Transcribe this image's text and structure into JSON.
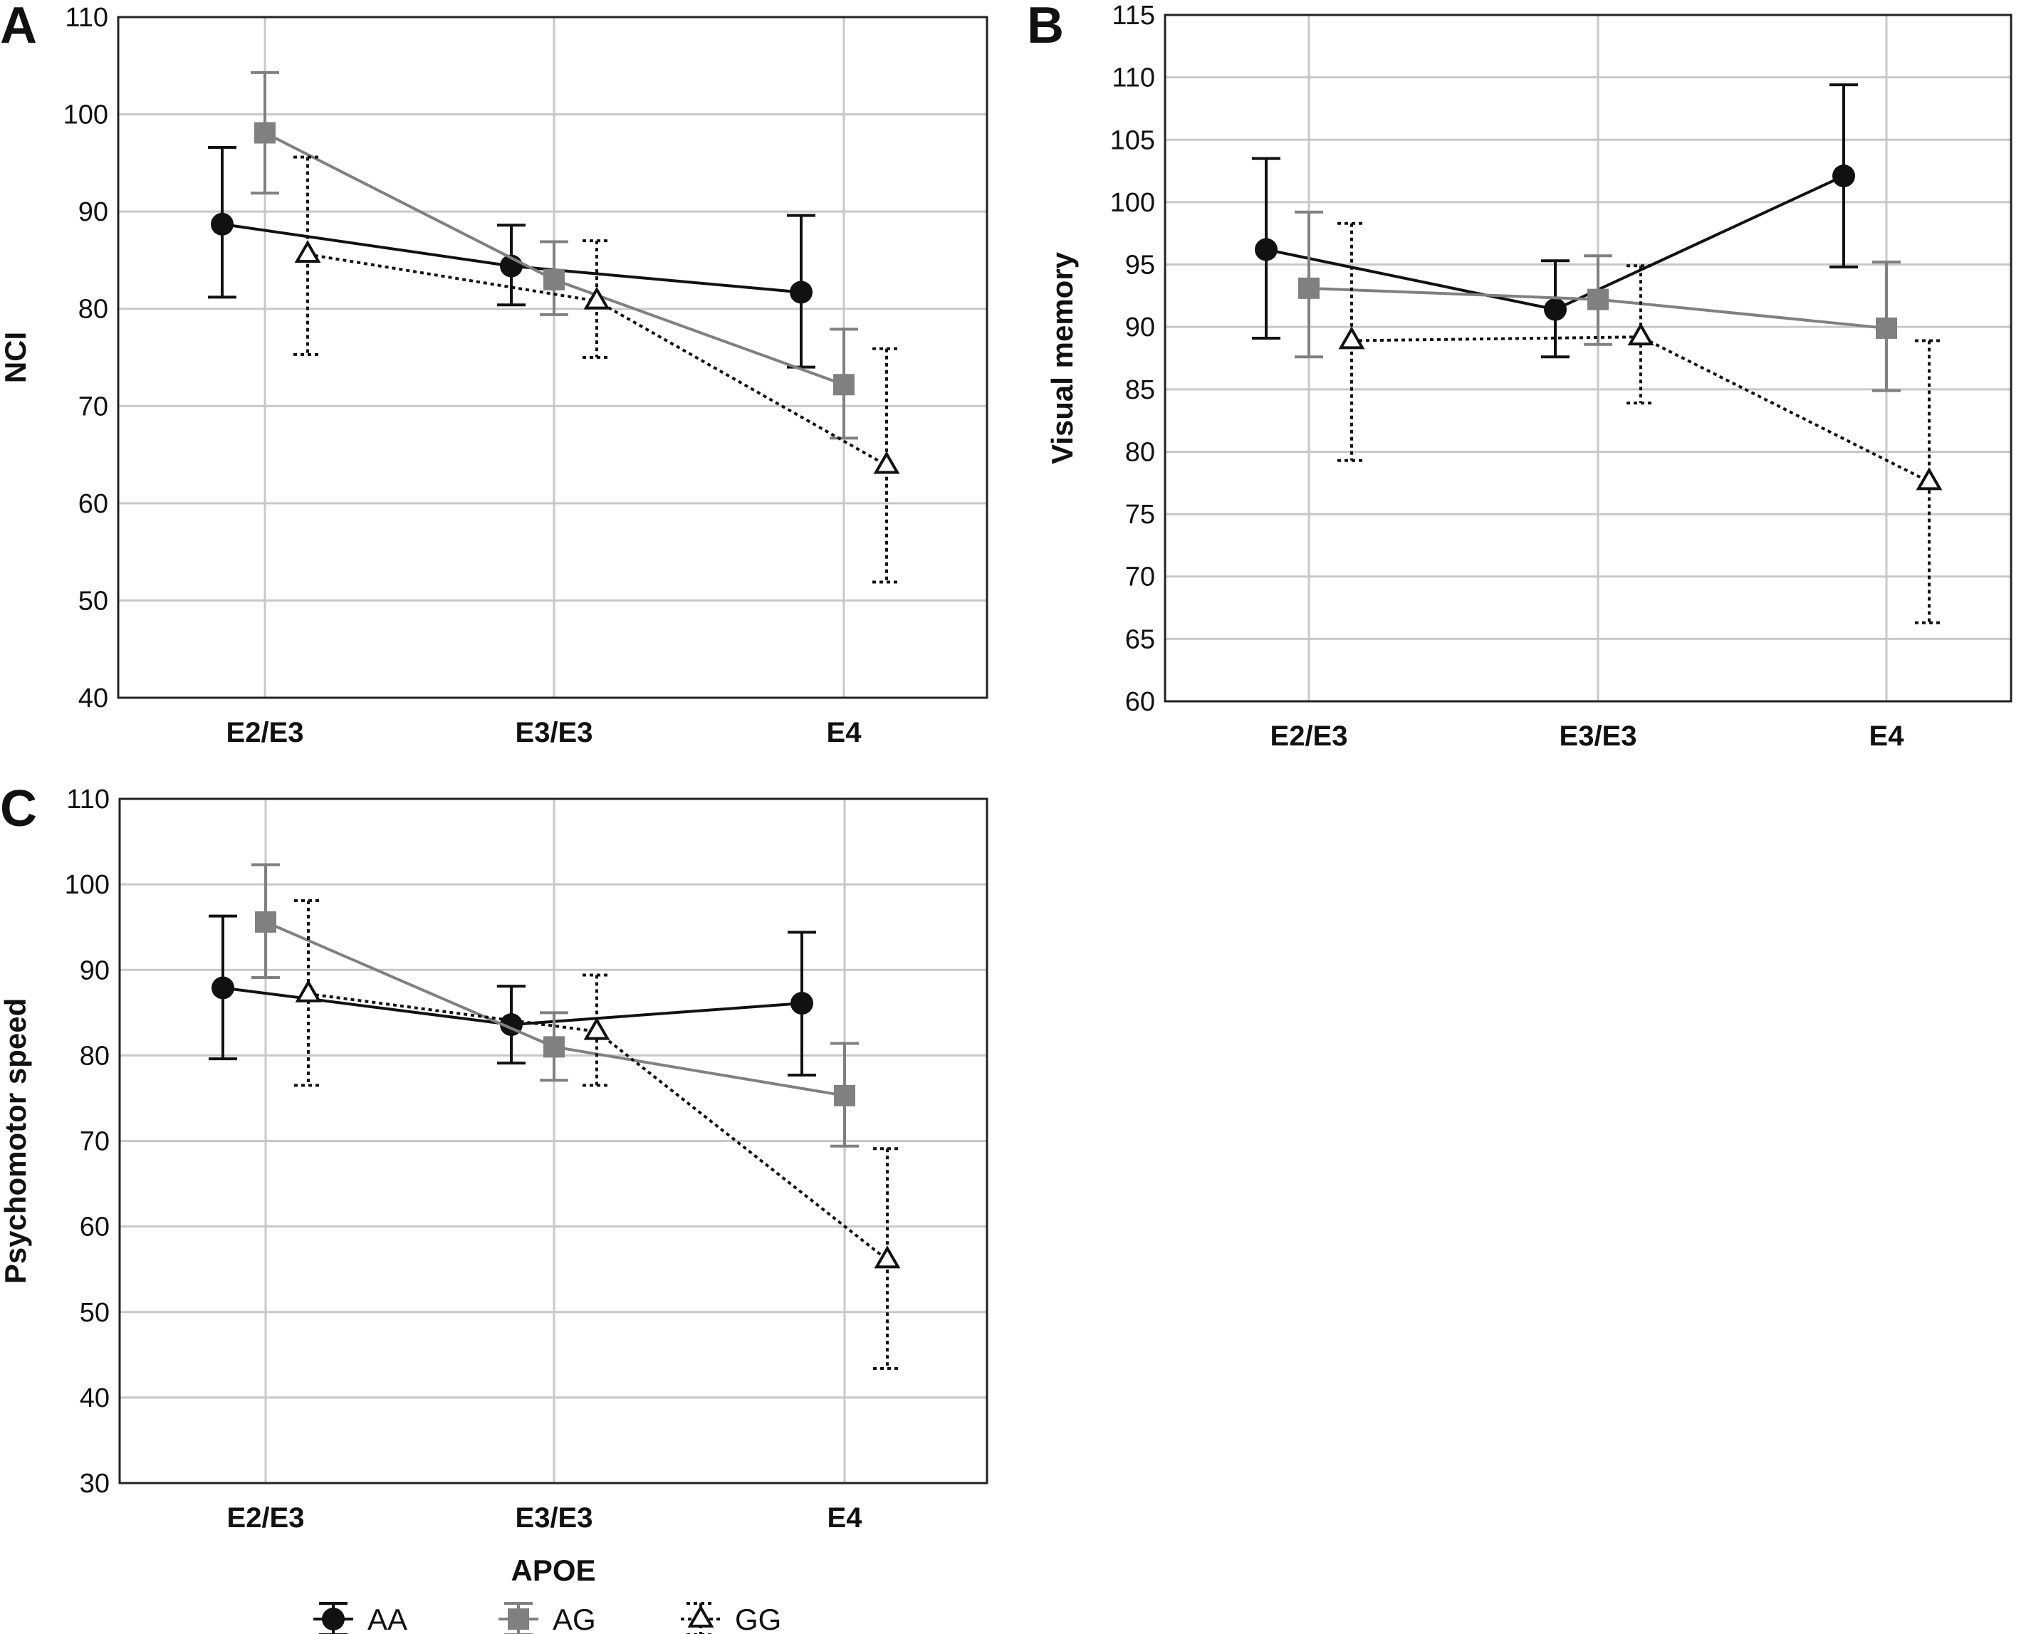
{
  "chart_data": [
    {
      "type": "line",
      "panel_label": "A",
      "categories": [
        "E2/E3",
        "E3/E3",
        "E4"
      ],
      "ylabel": "NCI",
      "xlabel": "",
      "ylim": [
        40,
        110
      ],
      "yticks": [
        40,
        50,
        60,
        70,
        80,
        90,
        100,
        110
      ],
      "grid": true,
      "series": [
        {
          "name": "AA",
          "values": [
            88.7,
            84.4,
            81.7
          ],
          "lower": [
            81.2,
            80.4,
            74.0
          ],
          "upper": [
            96.6,
            88.6,
            89.6
          ]
        },
        {
          "name": "AG",
          "values": [
            98.1,
            83.0,
            72.2
          ],
          "lower": [
            91.9,
            79.4,
            66.7
          ],
          "upper": [
            104.3,
            86.9,
            77.9
          ]
        },
        {
          "name": "GG",
          "values": [
            85.6,
            80.8,
            63.9
          ],
          "lower": [
            75.3,
            75.0,
            51.9
          ],
          "upper": [
            95.6,
            87.0,
            75.9
          ]
        }
      ]
    },
    {
      "type": "line",
      "panel_label": "B",
      "categories": [
        "E2/E3",
        "E3/E3",
        "E4"
      ],
      "ylabel": "Visual memory",
      "xlabel": "",
      "ylim": [
        60,
        115
      ],
      "yticks": [
        60,
        65,
        70,
        75,
        80,
        85,
        90,
        95,
        100,
        105,
        110,
        115
      ],
      "grid": true,
      "series": [
        {
          "name": "AA",
          "values": [
            96.2,
            91.4,
            102.1
          ],
          "lower": [
            89.1,
            87.6,
            94.8
          ],
          "upper": [
            103.5,
            95.3,
            109.4
          ]
        },
        {
          "name": "AG",
          "values": [
            93.1,
            92.2,
            89.9
          ],
          "lower": [
            87.6,
            88.6,
            84.9
          ],
          "upper": [
            99.2,
            95.7,
            95.2
          ]
        },
        {
          "name": "GG",
          "values": [
            88.9,
            89.2,
            77.6
          ],
          "lower": [
            79.3,
            83.9,
            66.3
          ],
          "upper": [
            98.3,
            94.9,
            88.9
          ]
        }
      ]
    },
    {
      "type": "line",
      "panel_label": "C",
      "categories": [
        "E2/E3",
        "E3/E3",
        "E4"
      ],
      "ylabel": "Psychomotor speed",
      "xlabel": "APOE",
      "ylim": [
        30,
        110
      ],
      "yticks": [
        30,
        40,
        50,
        60,
        70,
        80,
        90,
        100,
        110
      ],
      "grid": true,
      "series": [
        {
          "name": "AA",
          "values": [
            87.9,
            83.6,
            86.1
          ],
          "lower": [
            79.6,
            79.1,
            77.7
          ],
          "upper": [
            96.3,
            88.1,
            94.4
          ]
        },
        {
          "name": "AG",
          "values": [
            95.6,
            81.0,
            75.3
          ],
          "lower": [
            89.1,
            77.1,
            69.4
          ],
          "upper": [
            102.3,
            85.0,
            81.4
          ]
        },
        {
          "name": "GG",
          "values": [
            87.2,
            82.8,
            56.1
          ],
          "lower": [
            76.5,
            76.5,
            43.4
          ],
          "upper": [
            98.1,
            89.4,
            69.1
          ]
        }
      ]
    }
  ],
  "legend": {
    "position": "bottom",
    "items": [
      {
        "label": "AA",
        "marker": "filled-circle",
        "color": "#111111",
        "style": "solid"
      },
      {
        "label": "AG",
        "marker": "filled-square",
        "color": "#808080",
        "style": "solid"
      },
      {
        "label": "GG",
        "marker": "open-triangle",
        "color": "#111111",
        "style": "dotted"
      }
    ]
  },
  "colors": {
    "AA": "#111111",
    "AG": "#808080",
    "GG": "#111111",
    "grid": "#c8c8c8",
    "frame": "#222222"
  }
}
